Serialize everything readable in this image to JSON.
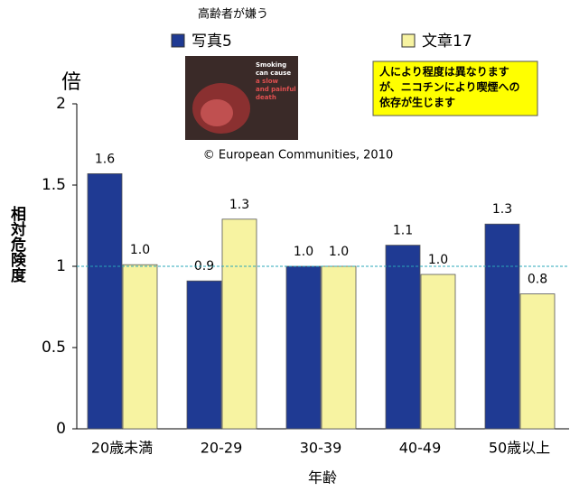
{
  "chart_data": {
    "type": "bar",
    "unit_label": "倍",
    "y_axis_title": "相対危険度",
    "x_axis_title": "年齢",
    "image_caption": "高齢者が嫌う",
    "image_text": [
      "Smoking",
      "can cause",
      "a slow",
      "and painful",
      "death"
    ],
    "copyright": "© European Communities, 2010",
    "annotation": [
      "人により程度は異なります",
      "が、ニコチンにより喫煙への",
      "依存が生じます"
    ],
    "categories": [
      "20歳未満",
      "20-29",
      "30-39",
      "40-49",
      "50歳以上"
    ],
    "series": [
      {
        "name": "写真5",
        "color": "#1f3a93",
        "values": [
          1.57,
          0.91,
          1.0,
          1.13,
          1.26
        ],
        "value_labels": [
          "1.6",
          "0.9",
          "1.0",
          "1.1",
          "1.3"
        ]
      },
      {
        "name": "文章17",
        "color": "#f7f3a1",
        "values": [
          1.01,
          1.29,
          1.0,
          0.95,
          0.83
        ],
        "value_labels": [
          "1.0",
          "1.3",
          "1.0",
          "1.0",
          "0.8"
        ]
      }
    ],
    "ylim": [
      0,
      2
    ],
    "yticks": [
      0,
      0.5,
      1,
      1.5,
      2
    ],
    "reference_line": 1
  }
}
